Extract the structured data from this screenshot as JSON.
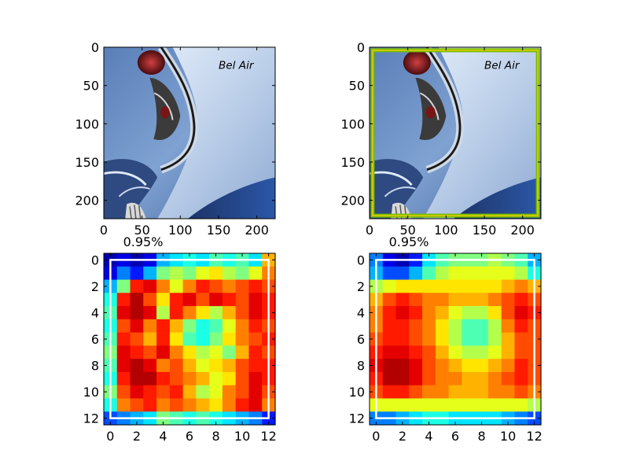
{
  "chart_data": [
    {
      "type": "image",
      "panel": "top-left",
      "title": "",
      "image_content": "blue car rear fender with Bel Air script and chrome tail light",
      "xlim": [
        0,
        224
      ],
      "ylim": [
        224,
        0
      ],
      "xticks": [
        0,
        50,
        100,
        150,
        200
      ],
      "yticks": [
        0,
        50,
        100,
        150,
        200
      ]
    },
    {
      "type": "image",
      "panel": "top-right",
      "title": "",
      "image_content": "same car image with green/yellow bounding box overlay",
      "xlim": [
        0,
        224
      ],
      "ylim": [
        224,
        0
      ],
      "xticks": [
        0,
        50,
        100,
        150,
        200
      ],
      "yticks": [
        0,
        50,
        100,
        150,
        200
      ],
      "box": {
        "x0": 4,
        "y0": 4,
        "x1": 220,
        "y1": 220,
        "colors": [
          "#77bb00",
          "#cccc00"
        ]
      }
    },
    {
      "type": "heatmap",
      "panel": "bottom-left",
      "title": "0.95%",
      "colormap": "jet",
      "rows": 13,
      "cols": 13,
      "xlim": [
        -0.5,
        12.5
      ],
      "ylim": [
        12.5,
        -0.5
      ],
      "xticks": [
        0,
        2,
        4,
        6,
        8,
        10,
        12
      ],
      "yticks": [
        0,
        2,
        4,
        6,
        8,
        10,
        12
      ],
      "box": {
        "x0": 0,
        "y0": 0,
        "x1": 12,
        "y1": 12,
        "color": "#ffffff"
      },
      "values": [
        [
          0.05,
          0.1,
          0.05,
          0.1,
          0.3,
          0.35,
          0.4,
          0.35,
          0.45,
          0.4,
          0.45,
          0.35,
          0.7
        ],
        [
          0.1,
          0.25,
          0.15,
          0.3,
          0.5,
          0.55,
          0.5,
          0.6,
          0.65,
          0.55,
          0.5,
          0.6,
          0.75
        ],
        [
          0.3,
          0.5,
          0.85,
          0.9,
          0.75,
          0.6,
          0.75,
          0.85,
          0.8,
          0.75,
          0.8,
          0.85,
          0.8
        ],
        [
          0.4,
          0.85,
          0.95,
          0.8,
          0.65,
          0.85,
          0.9,
          0.8,
          0.9,
          0.85,
          0.8,
          0.9,
          0.85
        ],
        [
          0.45,
          0.9,
          0.95,
          0.9,
          0.55,
          0.85,
          0.75,
          0.65,
          0.55,
          0.7,
          0.8,
          0.9,
          0.85
        ],
        [
          0.4,
          0.8,
          0.9,
          0.75,
          0.85,
          0.7,
          0.5,
          0.4,
          0.45,
          0.6,
          0.75,
          0.85,
          0.8
        ],
        [
          0.45,
          0.85,
          0.8,
          0.7,
          0.85,
          0.65,
          0.45,
          0.4,
          0.5,
          0.65,
          0.75,
          0.8,
          0.85
        ],
        [
          0.5,
          0.9,
          0.85,
          0.8,
          0.9,
          0.75,
          0.65,
          0.55,
          0.6,
          0.5,
          0.7,
          0.85,
          0.8
        ],
        [
          0.45,
          0.9,
          0.95,
          0.9,
          0.75,
          0.8,
          0.7,
          0.6,
          0.65,
          0.7,
          0.8,
          0.85,
          0.85
        ],
        [
          0.4,
          0.85,
          0.95,
          0.95,
          0.85,
          0.8,
          0.75,
          0.7,
          0.6,
          0.65,
          0.8,
          0.9,
          0.85
        ],
        [
          0.5,
          0.8,
          0.9,
          0.85,
          0.8,
          0.85,
          0.7,
          0.55,
          0.6,
          0.75,
          0.8,
          0.9,
          0.8
        ],
        [
          0.4,
          0.75,
          0.8,
          0.85,
          0.75,
          0.8,
          0.75,
          0.7,
          0.65,
          0.75,
          0.85,
          0.9,
          0.75
        ],
        [
          0.2,
          0.25,
          0.3,
          0.35,
          0.5,
          0.45,
          0.4,
          0.45,
          0.4,
          0.35,
          0.3,
          0.25,
          0.15
        ]
      ]
    },
    {
      "type": "heatmap",
      "panel": "bottom-right",
      "title": "0.95%",
      "colormap": "jet",
      "rows": 13,
      "cols": 13,
      "xlim": [
        -0.5,
        12.5
      ],
      "ylim": [
        12.5,
        -0.5
      ],
      "xticks": [
        0,
        2,
        4,
        6,
        8,
        10,
        12
      ],
      "yticks": [
        0,
        2,
        4,
        6,
        8,
        10,
        12
      ],
      "box": {
        "x0": 0,
        "y0": 0,
        "x1": 12,
        "y1": 12,
        "color": "#ffffff"
      },
      "values": [
        [
          0.25,
          0.1,
          0.05,
          0.15,
          0.35,
          0.45,
          0.5,
          0.5,
          0.5,
          0.55,
          0.5,
          0.45,
          0.3
        ],
        [
          0.3,
          0.2,
          0.2,
          0.3,
          0.45,
          0.55,
          0.6,
          0.6,
          0.6,
          0.6,
          0.6,
          0.55,
          0.4
        ],
        [
          0.55,
          0.6,
          0.65,
          0.65,
          0.65,
          0.65,
          0.65,
          0.65,
          0.65,
          0.65,
          0.7,
          0.75,
          0.7
        ],
        [
          0.7,
          0.8,
          0.85,
          0.8,
          0.75,
          0.75,
          0.7,
          0.7,
          0.7,
          0.75,
          0.8,
          0.85,
          0.8
        ],
        [
          0.75,
          0.85,
          0.9,
          0.85,
          0.75,
          0.7,
          0.6,
          0.55,
          0.55,
          0.65,
          0.8,
          0.9,
          0.85
        ],
        [
          0.75,
          0.85,
          0.85,
          0.8,
          0.75,
          0.65,
          0.55,
          0.45,
          0.45,
          0.55,
          0.75,
          0.85,
          0.8
        ],
        [
          0.8,
          0.85,
          0.85,
          0.8,
          0.75,
          0.65,
          0.55,
          0.45,
          0.45,
          0.55,
          0.7,
          0.8,
          0.8
        ],
        [
          0.85,
          0.9,
          0.9,
          0.85,
          0.8,
          0.7,
          0.6,
          0.55,
          0.55,
          0.6,
          0.7,
          0.8,
          0.8
        ],
        [
          0.9,
          0.95,
          0.95,
          0.9,
          0.8,
          0.75,
          0.7,
          0.65,
          0.65,
          0.7,
          0.75,
          0.85,
          0.8
        ],
        [
          0.85,
          0.95,
          0.95,
          0.9,
          0.8,
          0.75,
          0.75,
          0.7,
          0.7,
          0.75,
          0.8,
          0.85,
          0.8
        ],
        [
          0.8,
          0.85,
          0.85,
          0.8,
          0.75,
          0.75,
          0.7,
          0.7,
          0.7,
          0.75,
          0.75,
          0.8,
          0.75
        ],
        [
          0.6,
          0.6,
          0.6,
          0.6,
          0.6,
          0.6,
          0.6,
          0.6,
          0.6,
          0.6,
          0.6,
          0.6,
          0.55
        ],
        [
          0.25,
          0.25,
          0.3,
          0.35,
          0.4,
          0.4,
          0.35,
          0.35,
          0.35,
          0.35,
          0.3,
          0.25,
          0.2
        ]
      ]
    }
  ]
}
